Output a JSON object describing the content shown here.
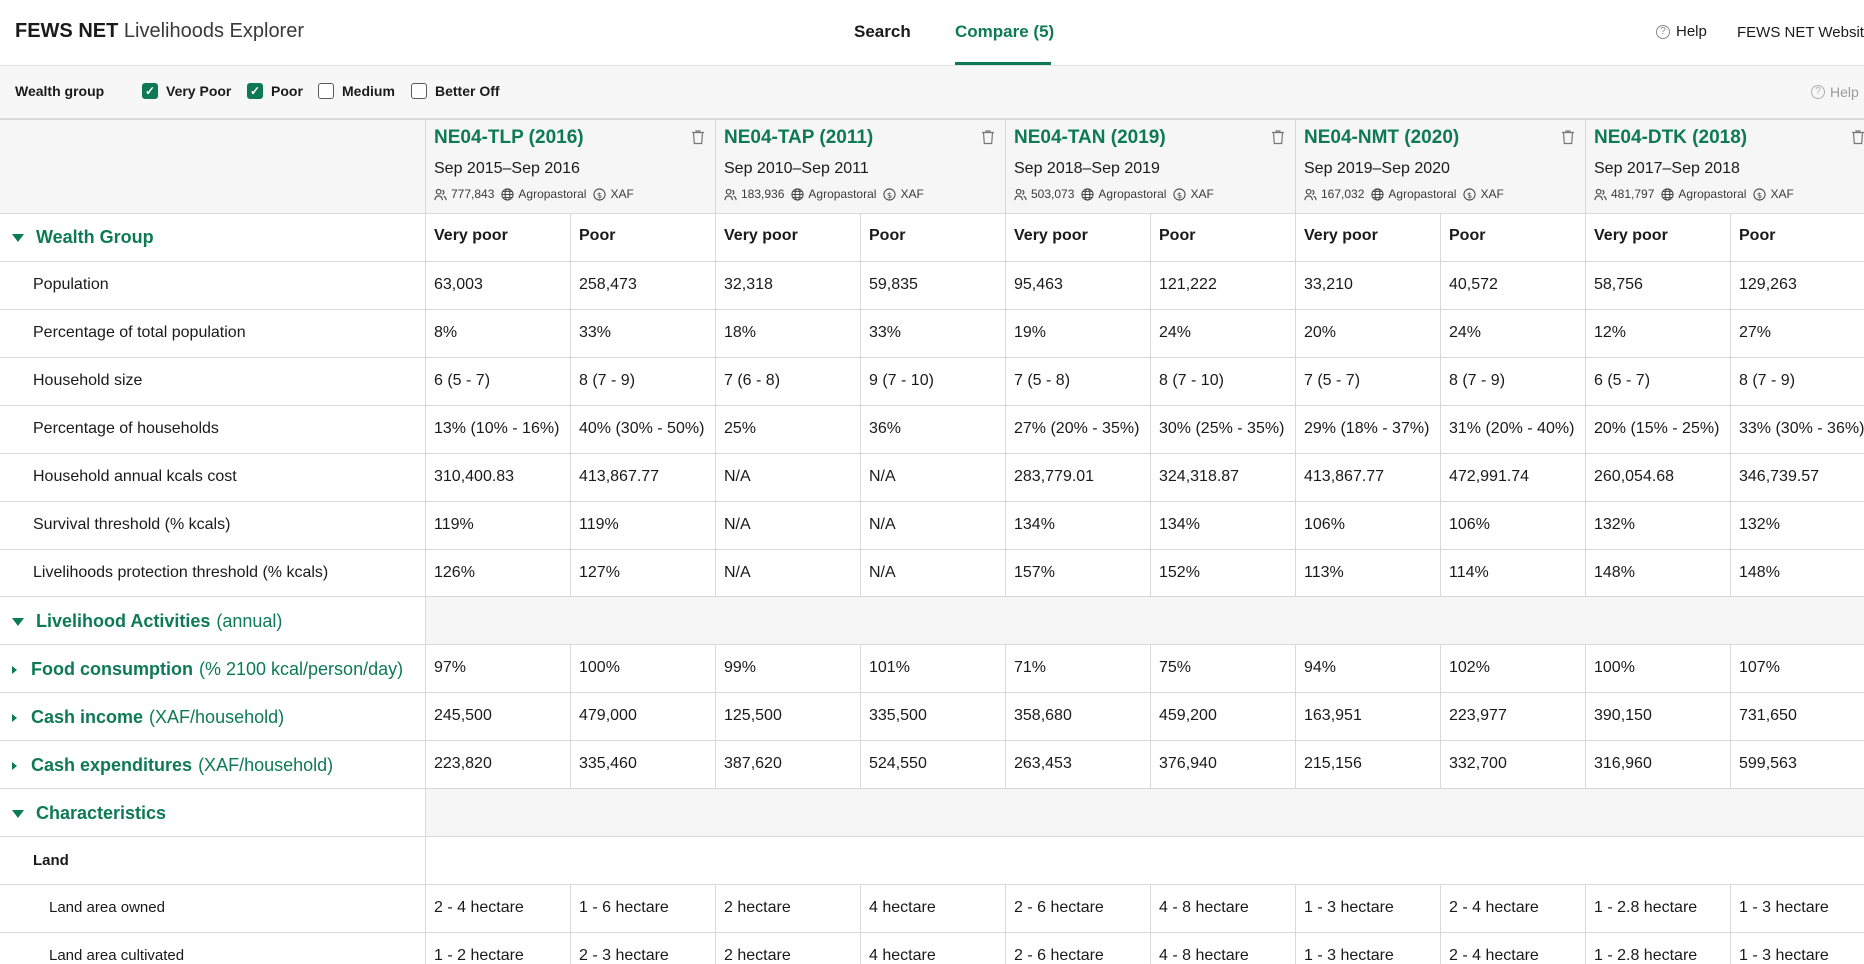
{
  "app": {
    "brand_bold": "FEWS NET",
    "brand_rest": "Livelihoods Explorer",
    "nav": {
      "search": "Search",
      "compare": "Compare (5)"
    },
    "help": "Help",
    "website": "FEWS NET Website"
  },
  "filter": {
    "label": "Wealth group",
    "options": [
      {
        "label": "Very Poor",
        "checked": true
      },
      {
        "label": "Poor",
        "checked": true
      },
      {
        "label": "Medium",
        "checked": false
      },
      {
        "label": "Better Off",
        "checked": false
      }
    ],
    "help": "Help"
  },
  "columns": [
    {
      "title": "NE04-TLP (2016)",
      "dates": "Sep 2015–Sep 2016",
      "population": "777,843",
      "type": "Agropastoral",
      "currency": "XAF"
    },
    {
      "title": "NE04-TAP (2011)",
      "dates": "Sep 2010–Sep 2011",
      "population": "183,936",
      "type": "Agropastoral",
      "currency": "XAF"
    },
    {
      "title": "NE04-TAN (2019)",
      "dates": "Sep 2018–Sep 2019",
      "population": "503,073",
      "type": "Agropastoral",
      "currency": "XAF"
    },
    {
      "title": "NE04-NMT (2020)",
      "dates": "Sep 2019–Sep 2020",
      "population": "167,032",
      "type": "Agropastoral",
      "currency": "XAF"
    },
    {
      "title": "NE04-DTK (2018)",
      "dates": "Sep 2017–Sep 2018",
      "population": "481,797",
      "type": "Agropastoral",
      "currency": "XAF"
    }
  ],
  "wealth_header": {
    "title": "Wealth Group",
    "groups": [
      "Very poor",
      "Poor",
      "Very poor",
      "Poor",
      "Very poor",
      "Poor",
      "Very poor",
      "Poor",
      "Very poor",
      "Poor"
    ]
  },
  "rows": [
    {
      "label": "Population",
      "values": [
        "63,003",
        "258,473",
        "32,318",
        "59,835",
        "95,463",
        "121,222",
        "33,210",
        "40,572",
        "58,756",
        "129,263"
      ]
    },
    {
      "label": "Percentage of total population",
      "values": [
        "8%",
        "33%",
        "18%",
        "33%",
        "19%",
        "24%",
        "20%",
        "24%",
        "12%",
        "27%"
      ]
    },
    {
      "label": "Household size",
      "values": [
        "6 (5 - 7)",
        "8 (7 - 9)",
        "7 (6 - 8)",
        "9 (7 - 10)",
        "7 (5 - 8)",
        "8 (7 - 10)",
        "7 (5 - 7)",
        "8 (7 - 9)",
        "6 (5 - 7)",
        "8 (7 - 9)"
      ]
    },
    {
      "label": "Percentage of households",
      "values": [
        "13% (10% - 16%)",
        "40% (30% - 50%)",
        "25%",
        "36%",
        "27% (20% - 35%)",
        "30% (25% - 35%)",
        "29% (18% - 37%)",
        "31% (20% - 40%)",
        "20% (15% - 25%)",
        "33% (30% - 36%)"
      ]
    },
    {
      "label": "Household annual kcals cost",
      "values": [
        "310,400.83",
        "413,867.77",
        "N/A",
        "N/A",
        "283,779.01",
        "324,318.87",
        "413,867.77",
        "472,991.74",
        "260,054.68",
        "346,739.57"
      ]
    },
    {
      "label": "Survival threshold (% kcals)",
      "values": [
        "119%",
        "119%",
        "N/A",
        "N/A",
        "134%",
        "134%",
        "106%",
        "106%",
        "132%",
        "132%"
      ]
    },
    {
      "label": "Livelihoods protection threshold (% kcals)",
      "values": [
        "126%",
        "127%",
        "N/A",
        "N/A",
        "157%",
        "152%",
        "113%",
        "114%",
        "148%",
        "148%"
      ]
    }
  ],
  "livelihood_section": {
    "title": "Livelihood Activities",
    "subtitle": "(annual)"
  },
  "activity_rows": [
    {
      "title": "Food consumption",
      "subtitle": "(% 2100 kcal/person/day)",
      "values": [
        "97%",
        "100%",
        "99%",
        "101%",
        "71%",
        "75%",
        "94%",
        "102%",
        "100%",
        "107%"
      ]
    },
    {
      "title": "Cash income",
      "subtitle": "(XAF/household)",
      "values": [
        "245,500",
        "479,000",
        "125,500",
        "335,500",
        "358,680",
        "459,200",
        "163,951",
        "223,977",
        "390,150",
        "731,650"
      ]
    },
    {
      "title": "Cash expenditures",
      "subtitle": "(XAF/household)",
      "values": [
        "223,820",
        "335,460",
        "387,620",
        "524,550",
        "263,453",
        "376,940",
        "215,156",
        "332,700",
        "316,960",
        "599,563"
      ]
    }
  ],
  "characteristics": {
    "title": "Characteristics",
    "subheading": "Land",
    "rows": [
      {
        "label": "Land area owned",
        "values": [
          "2 - 4 hectare",
          "1 - 6 hectare",
          "2 hectare",
          "4 hectare",
          "2 - 6 hectare",
          "4 - 8 hectare",
          "1 - 3 hectare",
          "2 - 4 hectare",
          "1 - 2.8 hectare",
          "1 - 3 hectare"
        ]
      },
      {
        "label": "Land area cultivated",
        "values": [
          "1 - 2 hectare",
          "2 - 3 hectare",
          "2 hectare",
          "4 hectare",
          "2 - 6 hectare",
          "4 - 8 hectare",
          "1 - 3 hectare",
          "2 - 4 hectare",
          "1 - 2.8 hectare",
          "1 - 3 hectare"
        ]
      }
    ]
  },
  "colors": {
    "accent": "#0e7a55",
    "header_bg": "#f6f6f6",
    "filter_bg": "#f7f7f7",
    "grid_line": "#d9d9d9"
  }
}
